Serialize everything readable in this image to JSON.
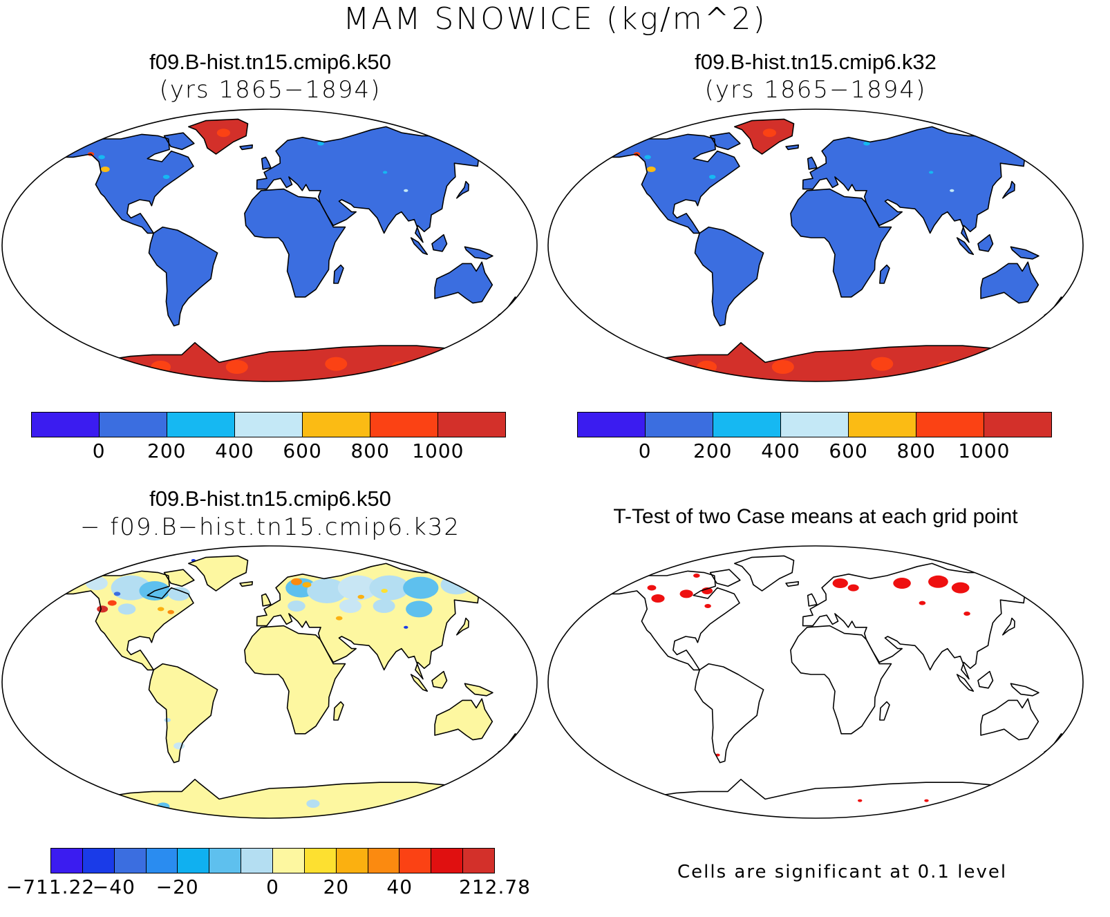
{
  "title": "MAM SNOWICE (kg/m^2)",
  "panels": [
    {
      "title": "f09.B-hist.tn15.cmip6.k50",
      "subtitle": "(yrs 1865−1894)"
    },
    {
      "title": "f09.B-hist.tn15.cmip6.k32",
      "subtitle": "(yrs 1865−1894)"
    },
    {
      "title": "f09.B-hist.tn15.cmip6.k50",
      "subtitle": "− f09.B−hist.tn15.cmip6.k32"
    },
    {
      "title": "T-Test of two Case means at each grid point",
      "subtitle": ""
    }
  ],
  "colorbar_abs": {
    "colors": [
      "#3b1cf0",
      "#3b6ee0",
      "#16b8f2",
      "#c4e8f6",
      "#fbbb14",
      "#fb4214",
      "#d3302a"
    ],
    "labels": [
      "0",
      "200",
      "400",
      "600",
      "800",
      "1000"
    ]
  },
  "colorbar_diff": {
    "colors": [
      "#3b1cf0",
      "#1a3be8",
      "#3b6ee0",
      "#2a8cf0",
      "#10b0f0",
      "#5ec0ee",
      "#b4def2",
      "#fdf7a0",
      "#fde030",
      "#fbb010",
      "#fb8a10",
      "#fb4214",
      "#e01010",
      "#d3302a"
    ],
    "labels": [
      "−711.22",
      "−40",
      "−20",
      "0",
      "20",
      "40",
      "212.78"
    ]
  },
  "note": "Cells are significant at 0.1 level",
  "map_colors": {
    "land_abs": "#3b6ee0",
    "ice_abs": "#d3302a",
    "land_diff": "#fdf7a0",
    "ice_diff_dots": "#b4def2",
    "signif": "#ee1010",
    "coast": "#000000"
  }
}
